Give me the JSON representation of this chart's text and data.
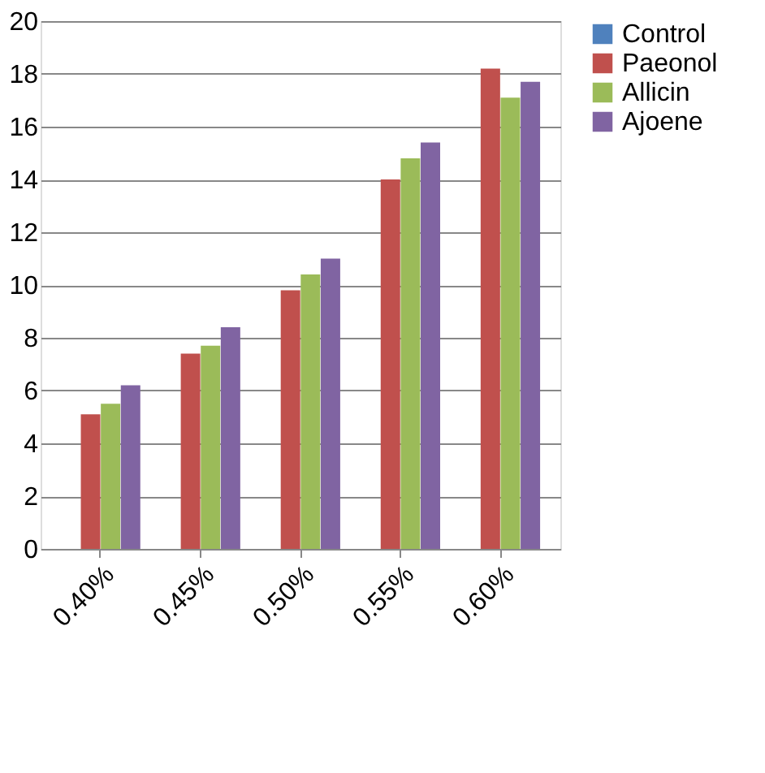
{
  "chart_data": {
    "type": "bar",
    "categories": [
      "0.40%",
      "0.45%",
      "0.50%",
      "0.55%",
      "0.60%"
    ],
    "series": [
      {
        "name": "Control",
        "color": "#4f81bd",
        "values": [
          0,
          0,
          0,
          0,
          0
        ]
      },
      {
        "name": "Paeonol",
        "color": "#c0504d",
        "values": [
          5.1,
          7.4,
          9.8,
          14.0,
          18.2
        ]
      },
      {
        "name": "Allicin",
        "color": "#9bbb59",
        "values": [
          5.5,
          7.7,
          10.4,
          14.8,
          17.1
        ]
      },
      {
        "name": "Ajoene",
        "color": "#8064a2",
        "values": [
          6.2,
          8.4,
          11.0,
          15.4,
          17.7
        ]
      }
    ],
    "ylim": [
      0,
      20
    ],
    "yticks": [
      0,
      2,
      4,
      6,
      8,
      10,
      12,
      14,
      16,
      18,
      20
    ],
    "grid": "y",
    "legend": "right"
  }
}
